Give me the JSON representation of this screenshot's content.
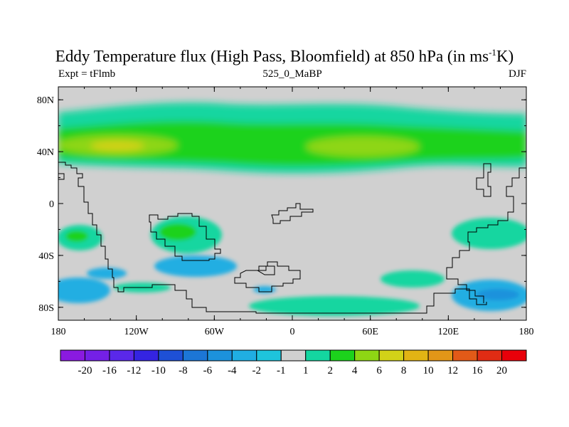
{
  "chart_data": {
    "type": "heatmap",
    "title_main": "Eddy Temperature flux (High Pass, Bloomfield) at 850 hPa (in ms",
    "title_sup": "-1",
    "title_end": "K)",
    "left_subtitle": "Expt = tFlmb",
    "center_subtitle": "525_0_MaBP",
    "right_subtitle": "DJF",
    "x_ticks": [
      "180",
      "120W",
      "60W",
      "0",
      "60E",
      "120E",
      "180"
    ],
    "y_ticks": [
      "80N",
      "40N",
      "0",
      "40S",
      "80S"
    ],
    "xlim": [
      -180,
      180
    ],
    "ylim": [
      -90,
      90
    ],
    "colorbar": {
      "labels": [
        "-20",
        "-16",
        "-12",
        "-10",
        "-8",
        "-6",
        "-4",
        "-2",
        "-1",
        "1",
        "2",
        "4",
        "6",
        "8",
        "10",
        "12",
        "16",
        "20"
      ],
      "colors": [
        "#8a1ae0",
        "#7420e6",
        "#5a28ea",
        "#3424e2",
        "#1e50d6",
        "#1c76d6",
        "#1c92dc",
        "#20aee2",
        "#1ec4dc",
        "#d0d0d0",
        "#14d6a0",
        "#1cd21c",
        "#8ed614",
        "#d2d218",
        "#e2b414",
        "#e29618",
        "#e25a18",
        "#e02c14",
        "#e8000a"
      ]
    },
    "background_color": "#d0d0d0"
  }
}
